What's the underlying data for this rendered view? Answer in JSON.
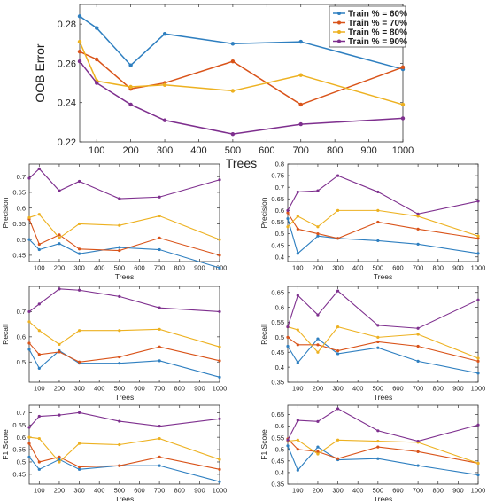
{
  "legend": [
    {
      "name": "Train % = 60%",
      "color": "#2e7fc0"
    },
    {
      "name": "Train % = 70%",
      "color": "#d95319"
    },
    {
      "name": "Train % = 80%",
      "color": "#edb120"
    },
    {
      "name": "Train % = 90%",
      "color": "#7e2f8e"
    }
  ],
  "chart_data": [
    {
      "type": "line",
      "xlabel": "Trees",
      "ylabel": "OOB Error",
      "x": [
        50,
        100,
        200,
        300,
        500,
        700,
        1000
      ],
      "xticks": [
        "100",
        "200",
        "300",
        "400",
        "500",
        "600",
        "700",
        "800",
        "900",
        "1000"
      ],
      "yticks": [
        "0.22",
        "0.24",
        "0.26",
        "0.28"
      ],
      "xlim": [
        50,
        1000
      ],
      "ylim": [
        0.22,
        0.29
      ],
      "grid": false,
      "legend_position": "top-right",
      "series": [
        {
          "name": "Train % = 60%",
          "values": [
            0.284,
            0.278,
            0.259,
            0.275,
            0.27,
            0.271,
            0.257
          ]
        },
        {
          "name": "Train % = 70%",
          "values": [
            0.266,
            0.262,
            0.247,
            0.25,
            0.261,
            0.239,
            0.258
          ]
        },
        {
          "name": "Train % = 80%",
          "values": [
            0.271,
            0.251,
            0.248,
            0.249,
            0.246,
            0.254,
            0.239
          ]
        },
        {
          "name": "Train % = 90%",
          "values": [
            0.261,
            0.25,
            0.239,
            0.231,
            0.224,
            0.229,
            0.232
          ]
        }
      ]
    },
    {
      "type": "line",
      "xlabel": "Trees",
      "ylabel": "Precision",
      "x": [
        50,
        100,
        200,
        300,
        500,
        700,
        1000
      ],
      "xticks": [
        "100",
        "200",
        "300",
        "400",
        "500",
        "600",
        "700",
        "800",
        "900",
        "1000"
      ],
      "yticks": [
        "0.45",
        "0.5",
        "0.55",
        "0.6",
        "0.65",
        "0.7"
      ],
      "xlim": [
        50,
        1000
      ],
      "ylim": [
        0.43,
        0.74
      ],
      "grid": false,
      "series": [
        {
          "values": [
            0.5,
            0.468,
            0.487,
            0.455,
            0.475,
            0.468,
            0.41
          ]
        },
        {
          "values": [
            0.565,
            0.485,
            0.515,
            0.47,
            0.465,
            0.505,
            0.45
          ]
        },
        {
          "values": [
            0.57,
            0.58,
            0.505,
            0.55,
            0.545,
            0.575,
            0.5
          ]
        },
        {
          "values": [
            0.695,
            0.725,
            0.655,
            0.685,
            0.63,
            0.635,
            0.69
          ]
        }
      ]
    },
    {
      "type": "line",
      "xlabel": "Trees",
      "ylabel": "Precision",
      "x": [
        50,
        100,
        200,
        300,
        500,
        700,
        1000
      ],
      "xticks": [
        "100",
        "200",
        "300",
        "400",
        "500",
        "600",
        "700",
        "800",
        "900",
        "1000"
      ],
      "yticks": [
        "0.4",
        "0.45",
        "0.5",
        "0.55",
        "0.6",
        "0.65",
        "0.7",
        "0.75",
        "0.8"
      ],
      "xlim": [
        50,
        1000
      ],
      "ylim": [
        0.38,
        0.8
      ],
      "grid": false,
      "series": [
        {
          "values": [
            0.565,
            0.415,
            0.49,
            0.48,
            0.47,
            0.455,
            0.415
          ]
        },
        {
          "values": [
            0.59,
            0.52,
            0.5,
            0.48,
            0.55,
            0.52,
            0.48
          ]
        },
        {
          "values": [
            0.53,
            0.575,
            0.53,
            0.6,
            0.6,
            0.575,
            0.49
          ]
        },
        {
          "values": [
            0.6,
            0.68,
            0.685,
            0.75,
            0.68,
            0.585,
            0.64
          ]
        }
      ]
    },
    {
      "type": "line",
      "xlabel": "Trees",
      "ylabel": "Recall",
      "x": [
        50,
        100,
        200,
        300,
        500,
        700,
        1000
      ],
      "xticks": [
        "100",
        "200",
        "300",
        "400",
        "500",
        "600",
        "700",
        "800",
        "900",
        "1000"
      ],
      "yticks": [
        "0.5",
        "0.6",
        "0.7"
      ],
      "xlim": [
        50,
        1000
      ],
      "ylim": [
        0.42,
        0.8
      ],
      "grid": false,
      "series": [
        {
          "values": [
            0.55,
            0.475,
            0.545,
            0.495,
            0.495,
            0.505,
            0.44
          ]
        },
        {
          "values": [
            0.575,
            0.53,
            0.54,
            0.5,
            0.52,
            0.56,
            0.505
          ]
        },
        {
          "values": [
            0.66,
            0.625,
            0.57,
            0.625,
            0.625,
            0.63,
            0.56
          ]
        },
        {
          "values": [
            0.7,
            0.73,
            0.79,
            0.785,
            0.76,
            0.715,
            0.7
          ]
        }
      ]
    },
    {
      "type": "line",
      "xlabel": "Trees",
      "ylabel": "Recall",
      "x": [
        50,
        100,
        200,
        300,
        500,
        700,
        1000
      ],
      "xticks": [
        "100",
        "200",
        "300",
        "400",
        "500",
        "600",
        "700",
        "800",
        "900",
        "1000"
      ],
      "yticks": [
        "0.35",
        "0.4",
        "0.45",
        "0.5",
        "0.55",
        "0.6",
        "0.65"
      ],
      "xlim": [
        50,
        1000
      ],
      "ylim": [
        0.35,
        0.67
      ],
      "grid": false,
      "series": [
        {
          "values": [
            0.47,
            0.415,
            0.495,
            0.445,
            0.465,
            0.42,
            0.38
          ]
        },
        {
          "values": [
            0.5,
            0.475,
            0.475,
            0.455,
            0.485,
            0.47,
            0.42
          ]
        },
        {
          "values": [
            0.535,
            0.525,
            0.45,
            0.535,
            0.5,
            0.51,
            0.43
          ]
        },
        {
          "values": [
            0.535,
            0.64,
            0.575,
            0.655,
            0.54,
            0.53,
            0.625
          ]
        }
      ]
    },
    {
      "type": "line",
      "xlabel": "Trees",
      "ylabel": "F1 Score",
      "x": [
        50,
        100,
        200,
        300,
        500,
        700,
        1000
      ],
      "xticks": [
        "100",
        "200",
        "300",
        "400",
        "500",
        "600",
        "700",
        "800",
        "900",
        "1000"
      ],
      "yticks": [
        "0.45",
        "0.5",
        "0.55",
        "0.6",
        "0.65",
        "0.7"
      ],
      "xlim": [
        50,
        1000
      ],
      "ylim": [
        0.41,
        0.73
      ],
      "grid": false,
      "series": [
        {
          "values": [
            0.52,
            0.47,
            0.51,
            0.47,
            0.485,
            0.485,
            0.42
          ]
        },
        {
          "values": [
            0.575,
            0.5,
            0.52,
            0.48,
            0.485,
            0.52,
            0.47
          ]
        },
        {
          "values": [
            0.6,
            0.595,
            0.5,
            0.575,
            0.57,
            0.595,
            0.51
          ]
        },
        {
          "values": [
            0.64,
            0.685,
            0.69,
            0.7,
            0.665,
            0.645,
            0.675
          ]
        }
      ]
    },
    {
      "type": "line",
      "xlabel": "Trees",
      "ylabel": "F1 Score",
      "x": [
        50,
        100,
        200,
        300,
        500,
        700,
        1000
      ],
      "xticks": [
        "100",
        "200",
        "300",
        "400",
        "500",
        "600",
        "700",
        "800",
        "900",
        "1000"
      ],
      "yticks": [
        "0.35",
        "0.4",
        "0.45",
        "0.5",
        "0.55",
        "0.6",
        "0.65"
      ],
      "xlim": [
        50,
        1000
      ],
      "ylim": [
        0.35,
        0.69
      ],
      "grid": false,
      "series": [
        {
          "values": [
            0.515,
            0.41,
            0.51,
            0.455,
            0.46,
            0.43,
            0.39
          ]
        },
        {
          "values": [
            0.545,
            0.5,
            0.49,
            0.46,
            0.51,
            0.49,
            0.44
          ]
        },
        {
          "values": [
            0.535,
            0.54,
            0.48,
            0.54,
            0.535,
            0.53,
            0.44
          ]
        },
        {
          "values": [
            0.54,
            0.625,
            0.62,
            0.675,
            0.58,
            0.535,
            0.605
          ]
        }
      ]
    }
  ]
}
